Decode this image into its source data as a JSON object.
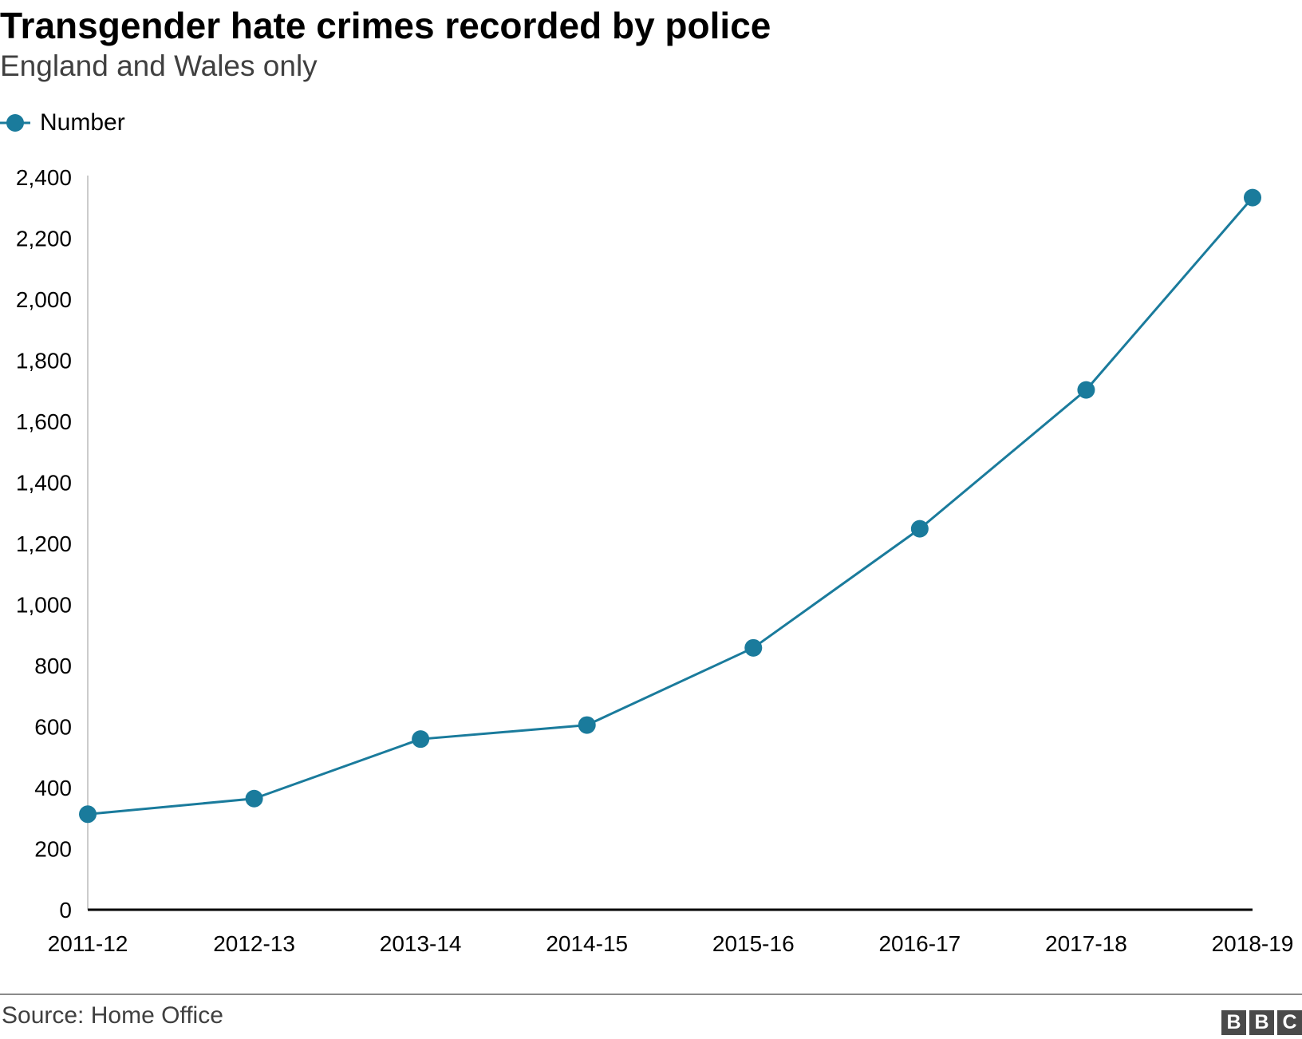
{
  "header": {
    "title": "Transgender hate crimes recorded by police",
    "subtitle": "England and Wales only"
  },
  "legend": {
    "label": "Number"
  },
  "footer": {
    "source": "Source: Home Office",
    "logo_letters": [
      "B",
      "B",
      "C"
    ]
  },
  "colors": {
    "series": "#1a7b9c",
    "axis": "#000000",
    "y_axis_line": "#cccccc"
  },
  "chart_data": {
    "type": "line",
    "title": "Transgender hate crimes recorded by police",
    "subtitle": "England and Wales only",
    "categories": [
      "2011-12",
      "2012-13",
      "2013-14",
      "2014-15",
      "2015-16",
      "2016-17",
      "2017-18",
      "2018-19"
    ],
    "series": [
      {
        "name": "Number",
        "values": [
          313,
          364,
          559,
          605,
          858,
          1248,
          1703,
          2333
        ]
      }
    ],
    "ylim": [
      0,
      2400
    ],
    "yticks": [
      0,
      200,
      400,
      600,
      800,
      1000,
      1200,
      1400,
      1600,
      1800,
      2000,
      2200,
      2400
    ],
    "ytick_labels": [
      "0",
      "200",
      "400",
      "600",
      "800",
      "1,000",
      "1,200",
      "1,400",
      "1,600",
      "1,800",
      "2,000",
      "2,200",
      "2,400"
    ],
    "xlabel": "",
    "ylabel": "",
    "grid": false,
    "legend_position": "top-left"
  }
}
